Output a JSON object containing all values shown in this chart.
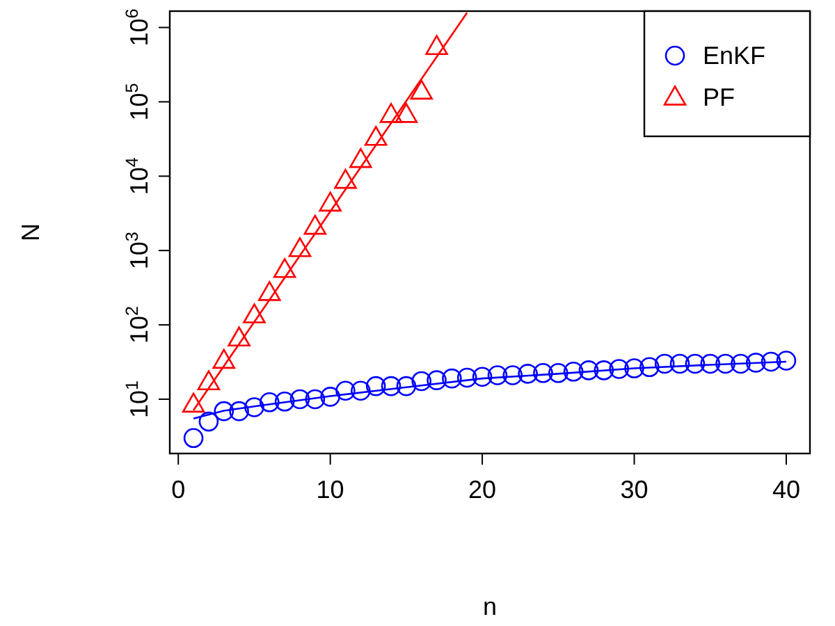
{
  "chart_data": {
    "type": "scatter",
    "xlabel": "n",
    "ylabel": "N",
    "log": "y",
    "xlim": [
      -0.56,
      41.56
    ],
    "ylim": [
      1.86,
      1660000
    ],
    "xticks": [
      0,
      10,
      20,
      30,
      40
    ],
    "yticks": [
      {
        "value": 10,
        "label": "10$^{1}$"
      },
      {
        "value": 100,
        "label": "10$^{2}$"
      },
      {
        "value": 1000,
        "label": "10$^{3}$"
      },
      {
        "value": 10000,
        "label": "10$^{4}$"
      },
      {
        "value": 100000,
        "label": "10$^{5}$"
      },
      {
        "value": 1000000,
        "label": "10$^{6}$"
      }
    ],
    "grid": false,
    "legend": "top right",
    "series": [
      {
        "name": "EnKF",
        "color": "#0000ff",
        "marker": "circle",
        "x": [
          1,
          2,
          3,
          4,
          5,
          6,
          7,
          8,
          9,
          10,
          11,
          12,
          13,
          14,
          15,
          16,
          17,
          18,
          19,
          20,
          21,
          22,
          23,
          24,
          25,
          26,
          27,
          28,
          29,
          30,
          31,
          32,
          33,
          34,
          35,
          36,
          37,
          38,
          39,
          40
        ],
        "values": [
          3.0,
          5.0,
          6.9,
          6.9,
          7.8,
          9.1,
          9.3,
          10,
          10,
          10.8,
          13,
          13,
          15,
          15,
          15,
          17.5,
          18,
          19,
          19.5,
          20,
          21,
          21,
          22,
          22.5,
          22.5,
          23.5,
          24.5,
          24.5,
          25.5,
          26,
          27,
          30,
          30,
          30,
          30,
          30,
          30,
          31,
          32,
          33
        ]
      },
      {
        "name": "PF",
        "color": "#ff0000",
        "marker": "triangle",
        "x": [
          1,
          2,
          3,
          4,
          5,
          6,
          7,
          8,
          9,
          10,
          11,
          12,
          13,
          14,
          15,
          16,
          17
        ],
        "values": [
          8.5,
          17,
          33,
          66,
          135,
          270,
          550,
          1050,
          2100,
          4300,
          8700,
          16600,
          33000,
          67000,
          67000,
          138000,
          550000
        ]
      },
      {
        "type": "line",
        "color": "#0000ff",
        "marker": "none",
        "line_style": "solid",
        "x": [
          1,
          3,
          5,
          10,
          15,
          20,
          25,
          30,
          35,
          40
        ],
        "values": [
          5.5,
          7,
          8,
          11,
          14.5,
          19,
          22,
          26,
          29,
          32
        ]
      },
      {
        "type": "line",
        "color": "#ff0000",
        "marker": "none",
        "line_style": "solid",
        "x": [
          1,
          19
        ],
        "values": [
          7.1,
          1580000
        ]
      }
    ]
  }
}
